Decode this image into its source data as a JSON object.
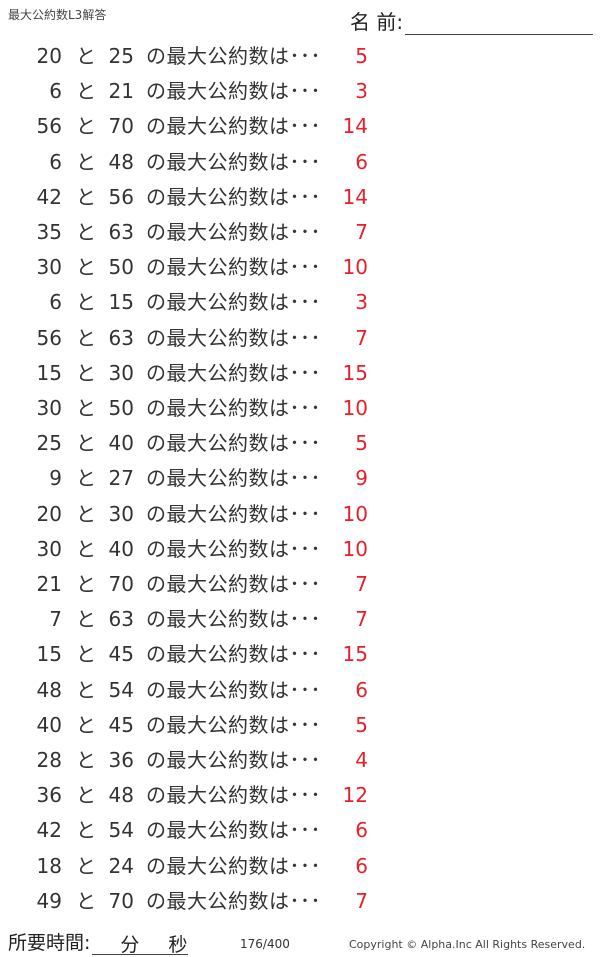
{
  "header": {
    "title": "最大公約数L3解答",
    "name_label": "名 前:"
  },
  "question_suffix": "の最大公約数は･･･",
  "connector": "と",
  "problems": [
    {
      "a": "20",
      "b": "25",
      "answer": "5"
    },
    {
      "a": "6",
      "b": "21",
      "answer": "3"
    },
    {
      "a": "56",
      "b": "70",
      "answer": "14"
    },
    {
      "a": "6",
      "b": "48",
      "answer": "6"
    },
    {
      "a": "42",
      "b": "56",
      "answer": "14"
    },
    {
      "a": "35",
      "b": "63",
      "answer": "7"
    },
    {
      "a": "30",
      "b": "50",
      "answer": "10"
    },
    {
      "a": "6",
      "b": "15",
      "answer": "3"
    },
    {
      "a": "56",
      "b": "63",
      "answer": "7"
    },
    {
      "a": "15",
      "b": "30",
      "answer": "15"
    },
    {
      "a": "30",
      "b": "50",
      "answer": "10"
    },
    {
      "a": "25",
      "b": "40",
      "answer": "5"
    },
    {
      "a": "9",
      "b": "27",
      "answer": "9"
    },
    {
      "a": "20",
      "b": "30",
      "answer": "10"
    },
    {
      "a": "30",
      "b": "40",
      "answer": "10"
    },
    {
      "a": "21",
      "b": "70",
      "answer": "7"
    },
    {
      "a": "7",
      "b": "63",
      "answer": "7"
    },
    {
      "a": "15",
      "b": "45",
      "answer": "15"
    },
    {
      "a": "48",
      "b": "54",
      "answer": "6"
    },
    {
      "a": "40",
      "b": "45",
      "answer": "5"
    },
    {
      "a": "28",
      "b": "36",
      "answer": "4"
    },
    {
      "a": "36",
      "b": "48",
      "answer": "12"
    },
    {
      "a": "42",
      "b": "54",
      "answer": "6"
    },
    {
      "a": "18",
      "b": "24",
      "answer": "6"
    },
    {
      "a": "49",
      "b": "70",
      "answer": "7"
    }
  ],
  "footer": {
    "time_label": "所要時間:",
    "minutes": "分",
    "seconds": "秒",
    "page": "176/400",
    "copyright": "Copyright ©  Alpha.Inc All Rights Reserved."
  },
  "colors": {
    "answer": "#e8202a"
  }
}
